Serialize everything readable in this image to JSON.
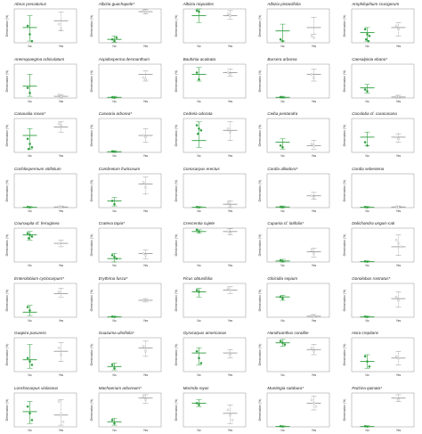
{
  "chart_data": {
    "type": "scatter",
    "layout": "7 rows x 5 columns small multiples",
    "shared": {
      "categories": [
        "No",
        "Yes"
      ],
      "ylabel": "Germination (%)",
      "ylim": [
        0,
        100
      ],
      "colors": {
        "No": "#2e9e3e",
        "Yes": "#9a9a9a"
      }
    },
    "panels": [
      {
        "title": "Abrus precatorius",
        "no": {
          "points": [
            50,
            25,
            5
          ],
          "mean": 45,
          "low": 5,
          "high": 80
        },
        "yes": {
          "points": [
            55,
            40
          ],
          "mean": 65,
          "low": 35,
          "high": 90
        }
      },
      {
        "title": "Albizia guachapele*",
        "no": {
          "points": [
            10,
            5,
            15
          ],
          "mean": 10,
          "low": 2,
          "high": 20
        },
        "yes": {
          "points": [
            95,
            90
          ],
          "mean": 92,
          "low": 85,
          "high": 98
        }
      },
      {
        "title": "Albizia niopoides",
        "no": {
          "points": [
            95,
            92
          ],
          "mean": 80,
          "low": 60,
          "high": 100
        },
        "yes": {
          "points": [
            85,
            80
          ],
          "mean": 80,
          "low": 70,
          "high": 95
        }
      },
      {
        "title": "Albizia pistaciifolia",
        "no": {
          "points": [
            10,
            5
          ],
          "mean": 35,
          "low": 5,
          "high": 55
        },
        "yes": {
          "points": [
            20,
            15
          ],
          "mean": 45,
          "low": 25,
          "high": 75
        }
      },
      {
        "title": "Amphilophium crucigerum",
        "no": {
          "points": [
            40,
            25,
            20,
            10,
            5
          ],
          "mean": 30,
          "low": 5,
          "high": 45
        },
        "yes": {
          "points": [
            50,
            40
          ],
          "mean": 45,
          "low": 20,
          "high": 60
        }
      },
      {
        "title": "Anemopaegma orbiculatum",
        "no": {
          "points": [
            30,
            15
          ],
          "mean": 35,
          "low": 5,
          "high": 70
        },
        "yes": {
          "points": [
            10,
            5
          ],
          "mean": 5,
          "low": 0,
          "high": 10
        }
      },
      {
        "title": "Aspidosperma desmanthum",
        "no": {
          "points": [
            2,
            1
          ],
          "mean": 2,
          "low": 0,
          "high": 5
        },
        "yes": {
          "points": [
            60,
            55
          ],
          "mean": 70,
          "low": 50,
          "high": 80
        }
      },
      {
        "title": "Bauhinia aculeata",
        "no": {
          "points": [
            75,
            55
          ],
          "mean": 70,
          "low": 50,
          "high": 90
        },
        "yes": {
          "points": [
            75,
            70
          ],
          "mean": 75,
          "low": 65,
          "high": 85
        }
      },
      {
        "title": "Bursera arborea",
        "no": {
          "points": [
            3,
            2
          ],
          "mean": 2,
          "low": 0,
          "high": 5
        },
        "yes": {
          "points": [
            70,
            60
          ],
          "mean": 70,
          "low": 50,
          "high": 85
        }
      },
      {
        "title": "Caesalpinia ebano*",
        "no": {
          "points": [
            25,
            20
          ],
          "mean": 30,
          "low": 15,
          "high": 40
        },
        "yes": {
          "points": [
            5,
            3
          ],
          "mean": 3,
          "low": 0,
          "high": 8
        }
      },
      {
        "title": "Canavalia rosea*",
        "no": {
          "points": [
            40,
            25,
            15,
            10
          ],
          "mean": 50,
          "low": 10,
          "high": 70
        },
        "yes": {
          "points": [
            85,
            80
          ],
          "mean": 75,
          "low": 60,
          "high": 90
        }
      },
      {
        "title": "Casearia arborea*",
        "no": {
          "points": [
            3,
            2
          ],
          "mean": 2,
          "low": 0,
          "high": 5
        },
        "yes": {
          "points": [
            50,
            45
          ],
          "mean": 50,
          "low": 30,
          "high": 70
        }
      },
      {
        "title": "Cedrela odorata",
        "no": {
          "points": [
            80,
            70,
            65,
            55
          ],
          "mean": 35,
          "low": 15,
          "high": 90
        },
        "yes": {
          "points": [
            70,
            60
          ],
          "mean": 65,
          "low": 35,
          "high": 90
        }
      },
      {
        "title": "Ceiba pentandra",
        "no": {
          "points": [
            20,
            15
          ],
          "mean": 30,
          "low": 10,
          "high": 40
        },
        "yes": {
          "points": [
            25,
            20
          ],
          "mean": 20,
          "low": 10,
          "high": 35
        }
      },
      {
        "title": "Cocoloba cf. caracasana",
        "no": {
          "points": [
            30,
            20
          ],
          "mean": 45,
          "low": 20,
          "high": 60
        },
        "yes": {
          "points": [
            45,
            40
          ],
          "mean": 45,
          "low": 30,
          "high": 55
        }
      },
      {
        "title": "Cochlospermum vitifolium",
        "no": {
          "points": [
            2,
            1
          ],
          "mean": 1,
          "low": 0,
          "high": 3
        },
        "yes": {
          "points": [
            3,
            2
          ],
          "mean": 2,
          "low": 0,
          "high": 5
        }
      },
      {
        "title": "Combretum fruticosum",
        "no": {
          "points": [
            20,
            10
          ],
          "mean": 20,
          "low": 5,
          "high": 30
        },
        "yes": {
          "points": [
            75,
            60
          ],
          "mean": 70,
          "low": 40,
          "high": 90
        }
      },
      {
        "title": "Conocarpus erectus",
        "no": {
          "points": [
            2,
            1
          ],
          "mean": 1,
          "low": 0,
          "high": 3
        },
        "yes": {
          "points": [
            15,
            5
          ],
          "mean": 10,
          "low": 0,
          "high": 20
        }
      },
      {
        "title": "Cordia alliodora*",
        "no": {
          "points": [
            2,
            1
          ],
          "mean": 2,
          "low": 0,
          "high": 5
        },
        "yes": {
          "points": [
            35,
            30
          ],
          "mean": 35,
          "low": 25,
          "high": 45
        }
      },
      {
        "title": "Cordia sebestena",
        "no": {
          "points": [
            2,
            1
          ],
          "mean": 1,
          "low": 0,
          "high": 3
        },
        "yes": {
          "points": [
            3,
            2
          ],
          "mean": 2,
          "low": 0,
          "high": 5
        }
      },
      {
        "title": "Couroupita cf. ferruginea",
        "no": {
          "points": [
            85,
            80,
            75,
            70
          ],
          "mean": 80,
          "low": 65,
          "high": 90
        },
        "yes": {
          "points": [
            55
          ],
          "mean": 55,
          "low": 45,
          "high": 65
        }
      },
      {
        "title": "Crateva tapia*",
        "no": {
          "points": [
            20,
            15,
            10
          ],
          "mean": 10,
          "low": 0,
          "high": 25
        },
        "yes": {
          "points": [
            25,
            20
          ],
          "mean": 25,
          "low": 10,
          "high": 35
        }
      },
      {
        "title": "Crescentia cujete",
        "no": {
          "points": [
            95,
            90
          ],
          "mean": 90,
          "low": 85,
          "high": 95
        },
        "yes": {
          "points": [
            90,
            85
          ],
          "mean": 90,
          "low": 80,
          "high": 98
        }
      },
      {
        "title": "Cupania cf. latifolia*",
        "no": {
          "points": [
            5,
            2
          ],
          "mean": 3,
          "low": 0,
          "high": 8
        },
        "yes": {
          "points": [
            35,
            25
          ],
          "mean": 30,
          "low": 15,
          "high": 40
        }
      },
      {
        "title": "Dolichandra unguis-cati",
        "no": {
          "points": [
            2,
            1
          ],
          "mean": 1,
          "low": 0,
          "high": 3
        },
        "yes": {
          "points": [
            65,
            55,
            45
          ],
          "mean": 45,
          "low": 20,
          "high": 80
        }
      },
      {
        "title": "Enterolobium cyclocarpum*",
        "no": {
          "points": [
            30,
            20
          ],
          "mean": 15,
          "low": 5,
          "high": 35
        },
        "yes": {
          "points": [
            75
          ],
          "mean": 70,
          "low": 60,
          "high": 85
        }
      },
      {
        "title": "Erythrina fusca*",
        "no": {
          "points": [
            2,
            1
          ],
          "mean": 1,
          "low": 0,
          "high": 3
        },
        "yes": {
          "points": [
            50
          ],
          "mean": 50,
          "low": 45,
          "high": 55
        }
      },
      {
        "title": "Ficus obtusifolia",
        "no": {
          "points": [
            80,
            75
          ],
          "mean": 75,
          "low": 60,
          "high": 85
        },
        "yes": {
          "points": [
            85,
            80
          ],
          "mean": 80,
          "low": 70,
          "high": 90
        }
      },
      {
        "title": "Gliricidia sepium",
        "no": {
          "points": [
            60,
            55
          ],
          "mean": 60,
          "low": 50,
          "high": 65
        },
        "yes": {
          "points": [
            5,
            2
          ],
          "mean": 3,
          "low": 0,
          "high": 8
        }
      },
      {
        "title": "Gonolobus rostratus*",
        "no": {
          "points": [
            2,
            1
          ],
          "mean": 1,
          "low": 0,
          "high": 3
        },
        "yes": {
          "points": [
            60,
            50
          ],
          "mean": 55,
          "low": 30,
          "high": 75
        }
      },
      {
        "title": "Guapira pacurero",
        "no": {
          "points": [
            40,
            30,
            20
          ],
          "mean": 35,
          "low": 10,
          "high": 80
        },
        "yes": {
          "points": [
            70,
            50
          ],
          "mean": 60,
          "low": 30,
          "high": 85
        }
      },
      {
        "title": "Guazuma ulmifolia*",
        "no": {
          "points": [
            20,
            10
          ],
          "mean": 15,
          "low": 5,
          "high": 25
        },
        "yes": {
          "points": [
            75,
            60
          ],
          "mean": 70,
          "low": 45,
          "high": 90
        }
      },
      {
        "title": "Gyrocarpus americanus",
        "no": {
          "points": [
            60,
            40,
            25
          ],
          "mean": 55,
          "low": 20,
          "high": 70
        },
        "yes": {
          "points": [
            55,
            50
          ],
          "mean": 55,
          "low": 40,
          "high": 65
        }
      },
      {
        "title": "Handroanthus coralibe",
        "no": {
          "points": [
            90,
            85,
            80
          ],
          "mean": 85,
          "low": 75,
          "high": 95
        },
        "yes": {
          "points": [
            70,
            60
          ],
          "mean": 65,
          "low": 50,
          "high": 80
        }
      },
      {
        "title": "Hura crepitans",
        "no": {
          "points": [
            45,
            30,
            15
          ],
          "mean": 30,
          "low": 10,
          "high": 50
        },
        "yes": {
          "points": [
            45,
            40
          ],
          "mean": 40,
          "low": 20,
          "high": 60
        }
      },
      {
        "title": "Lonchocarpus violaceus",
        "no": {
          "points": [
            60,
            40,
            20
          ],
          "mean": 45,
          "low": 10,
          "high": 75
        },
        "yes": {
          "points": [
            75,
            35,
            15
          ],
          "mean": 35,
          "low": 5,
          "high": 80
        }
      },
      {
        "title": "Machaerium arboreum*",
        "no": {
          "points": [
            20,
            10
          ],
          "mean": 15,
          "low": 5,
          "high": 25
        },
        "yes": {
          "points": [
            90,
            80
          ],
          "mean": 85,
          "low": 70,
          "high": 95
        }
      },
      {
        "title": "Morinda royoc",
        "no": {
          "points": [
            70,
            65
          ],
          "mean": 70,
          "low": 60,
          "high": 80
        },
        "yes": {
          "points": [
            50,
            35,
            20
          ],
          "mean": 40,
          "low": 10,
          "high": 65
        }
      },
      {
        "title": "Muntingia calabura*",
        "no": {
          "points": [
            2,
            1
          ],
          "mean": 1,
          "low": 0,
          "high": 3
        },
        "yes": {
          "points": [
            80,
            70,
            60
          ],
          "mean": 70,
          "low": 50,
          "high": 90
        }
      },
      {
        "title": "Pachira quinata*",
        "no": {
          "points": [
            2,
            1
          ],
          "mean": 1,
          "low": 0,
          "high": 3
        },
        "yes": {
          "points": [
            85,
            80
          ],
          "mean": 85,
          "low": 75,
          "high": 95
        }
      }
    ]
  }
}
